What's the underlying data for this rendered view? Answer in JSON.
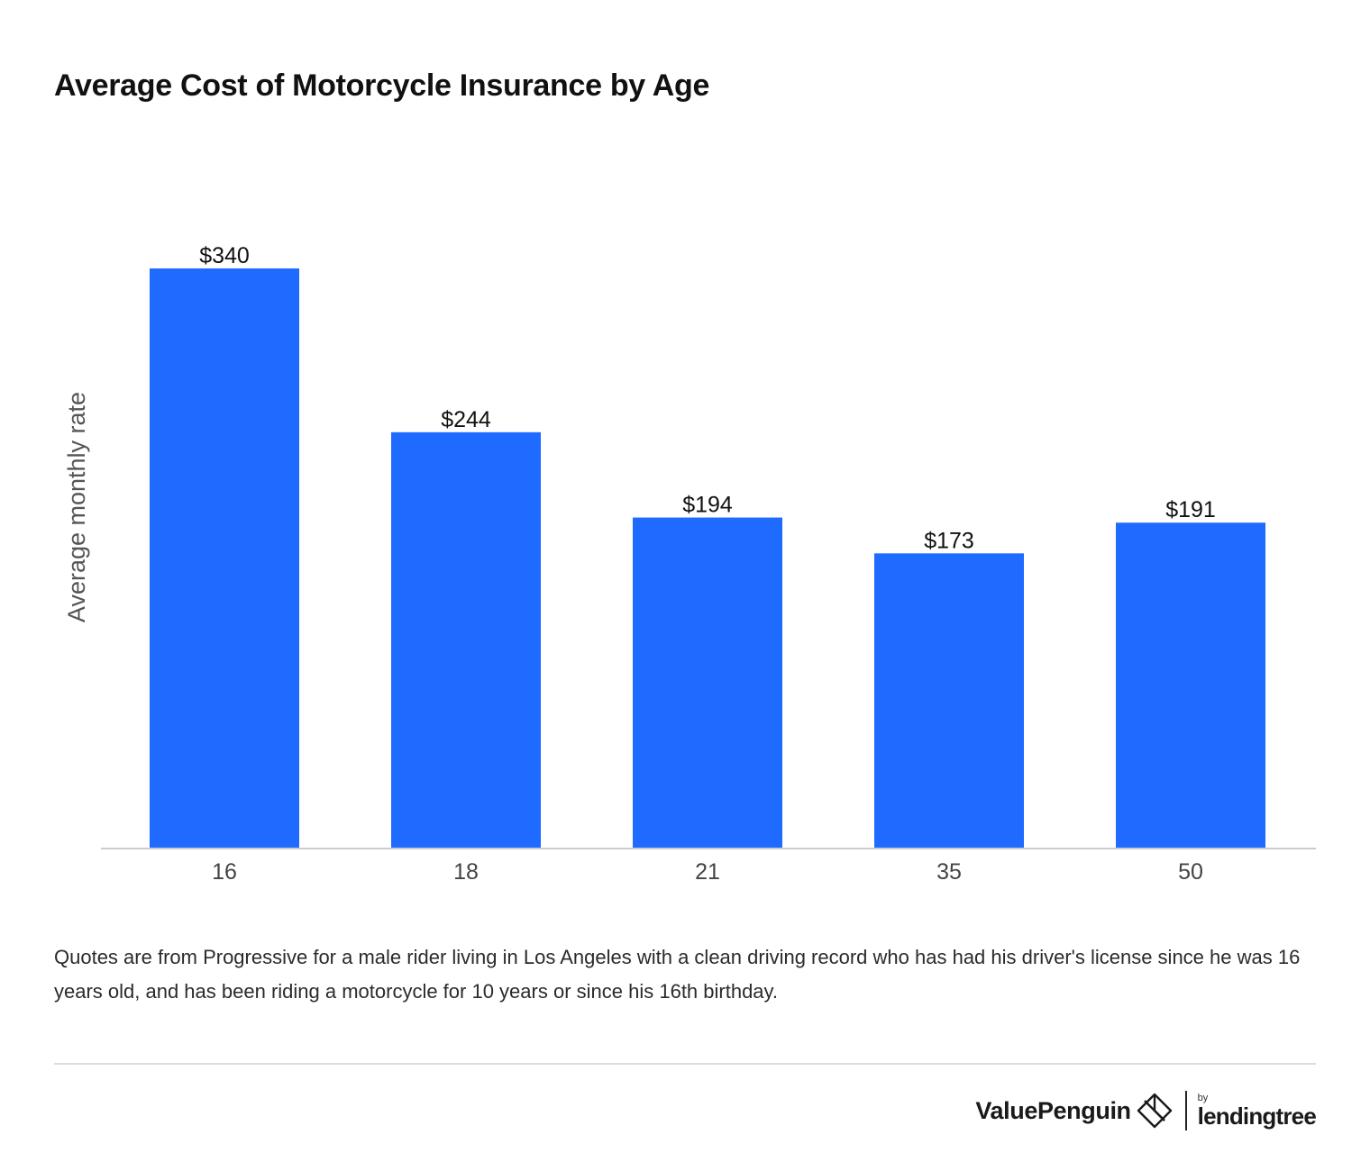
{
  "chart_data": {
    "type": "bar",
    "title": "Average Cost of Motorcycle Insurance by Age",
    "xlabel": "",
    "ylabel": "Average monthly rate",
    "categories": [
      "16",
      "18",
      "21",
      "35",
      "50"
    ],
    "values": [
      340,
      244,
      194,
      173,
      191
    ],
    "data_labels": [
      "$340",
      "$244",
      "$194",
      "$173",
      "$191"
    ],
    "ylim": [
      0,
      340
    ],
    "grid": false,
    "legend": "none",
    "bar_color": "#1f6bff"
  },
  "footnote": "Quotes are from Progressive for a male rider living in Los Angeles with a clean driving record who has had his driver's license since he was 16 years old, and has been riding a motorcycle for 10 years or since his 16th birthday.",
  "brand": {
    "name": "ValuePenguin",
    "by": "by",
    "partner": "lendingtree",
    "logo_icon": "valuepenguin-logo-icon"
  },
  "colors": {
    "bar": "#1f6bff",
    "axis": "#cccccc",
    "title": "#111111",
    "text": "#2b2b2b"
  }
}
